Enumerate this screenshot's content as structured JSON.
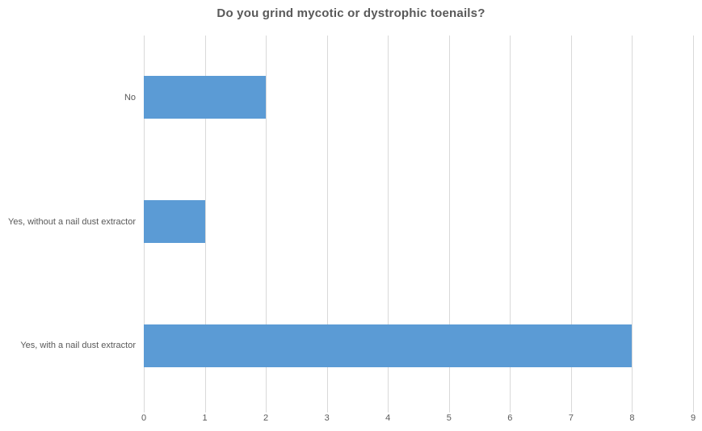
{
  "chart_data": {
    "type": "bar",
    "orientation": "horizontal",
    "title": "Do you grind mycotic or dystrophic toenails?",
    "categories": [
      "No",
      "Yes, without a nail dust extractor",
      "Yes, with a nail dust extractor"
    ],
    "values": [
      2,
      1,
      8
    ],
    "xlabel": "",
    "ylabel": "",
    "xlim": [
      0,
      9
    ],
    "xticks": [
      0,
      1,
      2,
      3,
      4,
      5,
      6,
      7,
      8,
      9
    ],
    "grid": "vertical-major-gridlines",
    "legend": "none",
    "colors": {
      "bar": "#5B9BD5",
      "gridline": "#D9D9D9",
      "title_text": "#595959",
      "axis_text": "#595959",
      "background": "#FFFFFF"
    }
  }
}
